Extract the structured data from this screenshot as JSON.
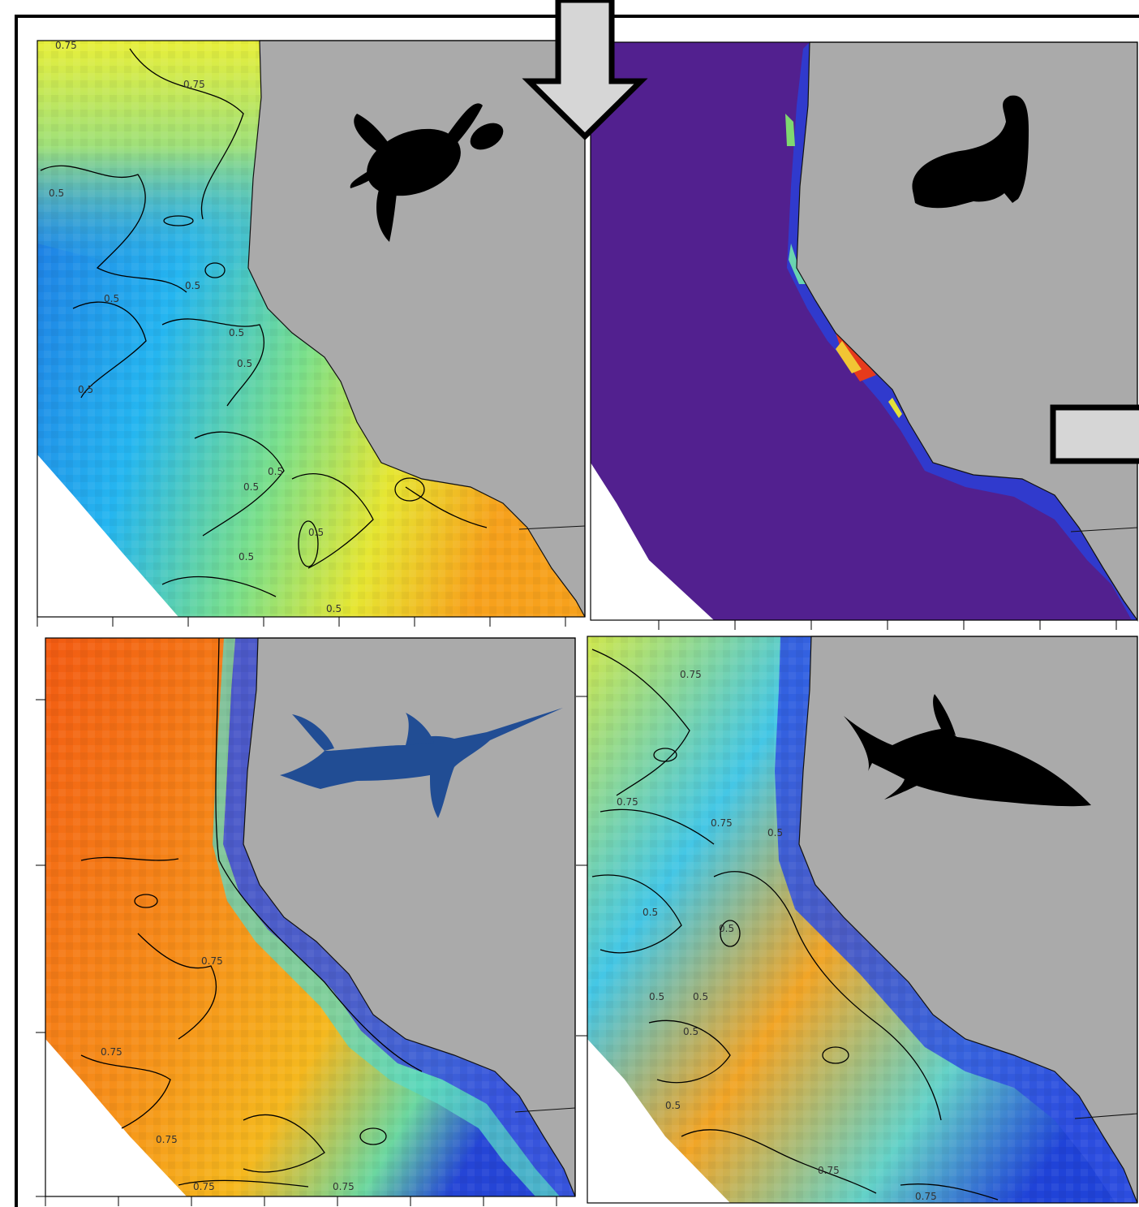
{
  "figure": {
    "panels": [
      {
        "id": "turtle",
        "silhouette": "sea-turtle-icon",
        "colormap": "jet",
        "silhouette_color": "#000000",
        "contour_labels": [
          "0.75",
          "0.75",
          "0.5",
          "0.5",
          "0.5",
          "0.5",
          "0.5",
          "0.5",
          "0.5",
          "0.5",
          "0.5",
          "0.5",
          "0.5"
        ]
      },
      {
        "id": "sea-lion",
        "silhouette": "sea-lion-icon",
        "colormap": "purple-background",
        "background_color": "#52208f",
        "silhouette_color": "#000000",
        "contour_labels": []
      },
      {
        "id": "swordfish",
        "silhouette": "swordfish-icon",
        "colormap": "jet",
        "silhouette_color": "#214d94",
        "contour_labels": [
          "0.75",
          "0.75",
          "0.75",
          "0.75",
          "0.75"
        ]
      },
      {
        "id": "shark",
        "silhouette": "shark-icon",
        "colormap": "jet",
        "silhouette_color": "#000000",
        "contour_labels": [
          "0.75",
          "0.75",
          "0.75",
          "0.5",
          "0.5",
          "0.5",
          "0.5",
          "0.5",
          "0.5",
          "0.5",
          "0.75",
          "0.75"
        ]
      }
    ],
    "arrows": [
      "down-arrow-icon",
      "right-arrow-icon"
    ],
    "land_color": "#aaaaaa",
    "arrow_color": "#d6d6d6"
  }
}
